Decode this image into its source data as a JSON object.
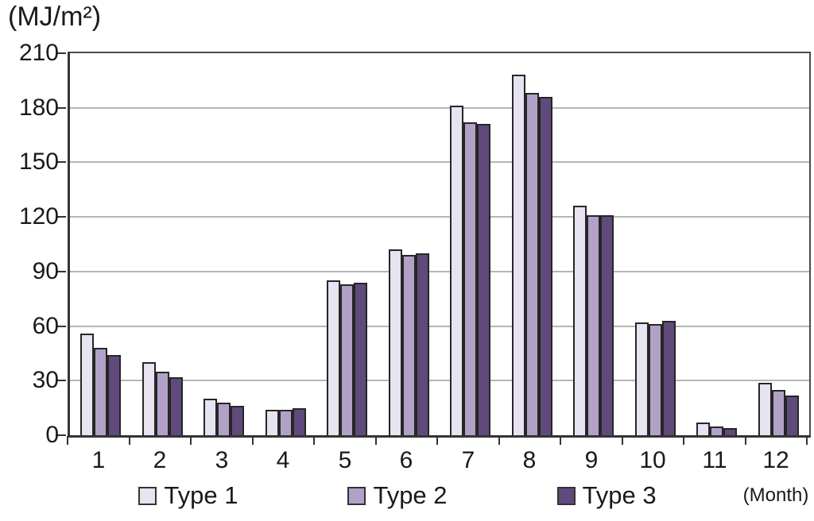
{
  "chart_data": {
    "type": "bar",
    "title": "(MJ/m²)",
    "ylabel": "(MJ/m²)",
    "xlabel": "(Month)",
    "categories": [
      "1",
      "2",
      "3",
      "4",
      "5",
      "6",
      "7",
      "8",
      "9",
      "10",
      "11",
      "12"
    ],
    "series": [
      {
        "name": "Type 1",
        "color": "#e8e3f0",
        "values": [
          56,
          40,
          20,
          14,
          85,
          102,
          181,
          198,
          126,
          62,
          7,
          29
        ]
      },
      {
        "name": "Type 2",
        "color": "#b2a1c7",
        "values": [
          48,
          35,
          18,
          14,
          83,
          99,
          172,
          188,
          121,
          61,
          5,
          25
        ]
      },
      {
        "name": "Type 3",
        "color": "#604a7b",
        "values": [
          44,
          32,
          16,
          15,
          84,
          100,
          171,
          186,
          121,
          63,
          4,
          22
        ]
      }
    ],
    "ylim": [
      0,
      210
    ],
    "yticks": [
      0,
      30,
      60,
      90,
      120,
      150,
      180,
      210
    ],
    "grid": true,
    "legend_position": "bottom",
    "axis_color": "#333333",
    "plot_border_color": "#4a4a4a",
    "gridline_color": "#b5b5b5",
    "bar_outline_color": "#262626"
  }
}
